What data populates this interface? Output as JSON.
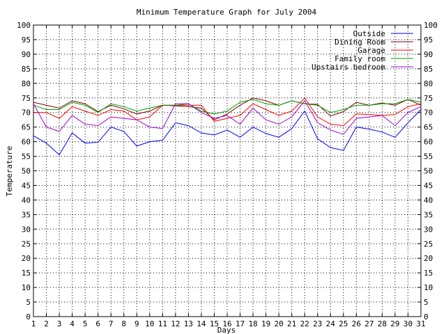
{
  "chart_data": {
    "type": "line",
    "title": "Minimum Temperature Graph for July 2004",
    "xlabel": "Days",
    "ylabel": "Temperature",
    "x": [
      1,
      2,
      3,
      4,
      5,
      6,
      7,
      8,
      9,
      10,
      11,
      12,
      13,
      14,
      15,
      16,
      17,
      18,
      19,
      20,
      21,
      22,
      23,
      24,
      25,
      26,
      27,
      28,
      29,
      30,
      31
    ],
    "xlim": [
      1,
      31
    ],
    "ylim": [
      0,
      100
    ],
    "ytick_step": 5,
    "grid": true,
    "legend_position": "top-right",
    "series": [
      {
        "name": "Outside",
        "color": "#0000ff",
        "values": [
          62.0,
          59.5,
          55.5,
          63.0,
          59.5,
          59.8,
          65.0,
          63.5,
          58.5,
          60.0,
          60.5,
          66.5,
          65.5,
          63.0,
          62.3,
          64.0,
          61.5,
          65.0,
          62.8,
          61.5,
          64.5,
          70.5,
          61.0,
          58.0,
          57.0,
          65.0,
          64.3,
          63.3,
          61.5,
          66.5,
          71.0
        ]
      },
      {
        "name": "Dining Room",
        "color": "#7f0000",
        "values": [
          73.5,
          72.5,
          71.5,
          74.0,
          73.0,
          70.3,
          72.5,
          71.3,
          69.5,
          70.5,
          72.5,
          72.3,
          72.0,
          71.5,
          67.5,
          69.5,
          72.5,
          75.0,
          74.0,
          72.5,
          74.0,
          73.0,
          72.8,
          68.8,
          70.3,
          73.5,
          72.5,
          73.3,
          72.5,
          74.5,
          72.5
        ]
      },
      {
        "name": "Garage",
        "color": "#ff0000",
        "values": [
          70.0,
          70.0,
          68.0,
          72.0,
          70.5,
          69.0,
          71.0,
          70.5,
          67.5,
          68.5,
          72.5,
          72.5,
          72.5,
          72.5,
          67.0,
          68.0,
          69.0,
          73.0,
          71.0,
          69.0,
          70.5,
          75.0,
          68.5,
          66.0,
          65.5,
          69.5,
          69.3,
          69.0,
          69.3,
          72.0,
          73.0
        ]
      },
      {
        "name": "Family room",
        "color": "#00a000",
        "values": [
          72.5,
          71.0,
          71.0,
          73.5,
          72.5,
          70.0,
          73.0,
          72.0,
          70.5,
          71.5,
          72.5,
          72.5,
          73.0,
          70.5,
          69.5,
          70.5,
          73.5,
          74.5,
          73.0,
          72.5,
          74.0,
          73.0,
          72.5,
          70.0,
          71.0,
          72.5,
          72.5,
          73.0,
          73.0,
          74.5,
          73.5
        ]
      },
      {
        "name": "Upstairs bedroom",
        "color": "#a000d0",
        "values": [
          73.0,
          65.0,
          63.5,
          69.0,
          66.0,
          65.5,
          68.5,
          68.0,
          67.5,
          65.0,
          64.5,
          73.0,
          73.0,
          70.0,
          68.0,
          69.0,
          66.0,
          71.5,
          67.5,
          66.0,
          68.5,
          74.0,
          66.5,
          64.0,
          62.5,
          68.0,
          68.5,
          69.0,
          65.5,
          70.0,
          72.0
        ]
      }
    ]
  }
}
